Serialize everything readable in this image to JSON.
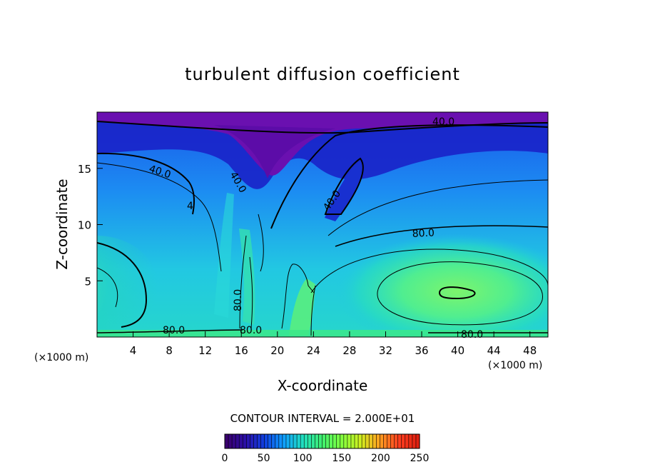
{
  "chart_data": {
    "type": "heatmap",
    "title": "turbulent diffusion coefficient",
    "xlabel": "X-coordinate",
    "ylabel": "Z-coordinate",
    "x_unit_label": "(×1000 m)",
    "x_unit_label_right": "(×1000 m)",
    "xlim": [
      0,
      50
    ],
    "ylim": [
      0,
      20
    ],
    "x_ticks": [
      4,
      8,
      12,
      16,
      20,
      24,
      28,
      32,
      36,
      40,
      44,
      48
    ],
    "y_ticks": [
      5,
      10,
      15
    ],
    "contour_interval_text": "CONTOUR INTERVAL = 2.000E+01",
    "contour_labels": [
      "40.0",
      "40.0",
      "40.0",
      "40.0",
      "80.0",
      "80.0",
      "80.0",
      "80.0",
      "80.0",
      "4"
    ],
    "colorbar": {
      "min": 0,
      "max": 250,
      "ticks": [
        0,
        50,
        100,
        150,
        200,
        250
      ],
      "colors": [
        "#3a006f",
        "#2a10a8",
        "#1040e0",
        "#10a0ff",
        "#20e0c0",
        "#40f070",
        "#80ff40",
        "#d0f020",
        "#ffa020",
        "#ff4020",
        "#e02010"
      ]
    }
  }
}
